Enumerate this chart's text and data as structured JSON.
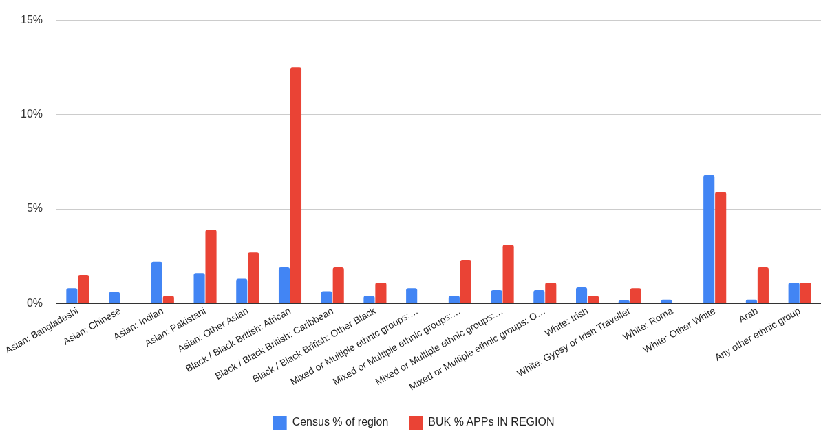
{
  "chart_data": {
    "type": "bar",
    "categories": [
      "Asian: Bangladeshi",
      "Asian: Chinese",
      "Asian: Indian",
      "Asian: Pakistani",
      "Asian: Other Asian",
      "Black / Black British: African",
      "Black / Black British: Caribbean",
      "Black / Black British: Other Black",
      "Mixed or Multiple ethnic groups:…",
      "Mixed or Multiple ethnic groups:…",
      "Mixed or Multiple ethnic groups:…",
      "Mixed or Multiple ethnic groups: O…",
      "White: Irish",
      "White: Gypsy or Irish Traveller",
      "White: Roma",
      "White: Other White",
      "Arab",
      "Any other ethnic group"
    ],
    "series": [
      {
        "name": "Census % of region",
        "color": "#4285f4",
        "values": [
          0.8,
          0.6,
          2.2,
          1.6,
          1.3,
          1.9,
          0.65,
          0.4,
          0.8,
          0.4,
          0.7,
          0.7,
          0.85,
          0.15,
          0.2,
          6.8,
          0.2,
          1.1
        ]
      },
      {
        "name": "BUK % APPs IN REGION",
        "color": "#ea4335",
        "values": [
          1.5,
          0,
          0.4,
          3.9,
          2.7,
          12.5,
          1.9,
          1.1,
          0,
          2.3,
          3.1,
          1.1,
          0.4,
          0.8,
          0,
          5.9,
          1.9,
          1.1
        ]
      }
    ],
    "ylim": [
      0,
      15
    ],
    "yticks": [
      {
        "value": 0,
        "label": "0%"
      },
      {
        "value": 5,
        "label": "5%"
      },
      {
        "value": 10,
        "label": "10%"
      },
      {
        "value": 15,
        "label": "15%"
      }
    ],
    "grid": "y",
    "legend": "bottom"
  }
}
